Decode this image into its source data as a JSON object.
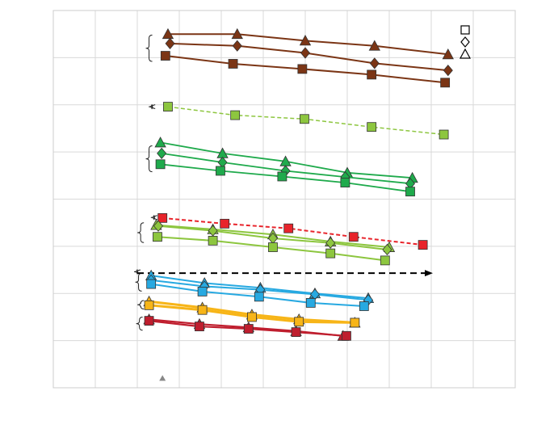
{
  "chart_data": {
    "type": "line",
    "title": "",
    "xlabel": "",
    "ylabel": "",
    "grid": true,
    "xlim": [
      0,
      11
    ],
    "ylim": [
      0,
      8
    ],
    "legend": {
      "placement": "top-right",
      "entries": [
        {
          "marker": "square"
        },
        {
          "marker": "diamond"
        },
        {
          "marker": "triangle"
        }
      ]
    },
    "series": [
      {
        "color": "#7B3515",
        "marker": "triangle",
        "dash": false,
        "width": 2,
        "brace": 0,
        "x": [
          2.73,
          4.38,
          6.0,
          7.65,
          9.4
        ],
        "y": [
          7.5,
          7.5,
          7.36,
          7.25,
          7.07
        ]
      },
      {
        "color": "#7B3515",
        "marker": "diamond",
        "dash": false,
        "width": 2,
        "brace": 0,
        "x": [
          2.78,
          4.38,
          6.0,
          7.65,
          9.4
        ],
        "y": [
          7.3,
          7.25,
          7.1,
          6.88,
          6.73
        ]
      },
      {
        "color": "#7B3515",
        "marker": "square",
        "dash": false,
        "width": 2,
        "brace": 0,
        "x": [
          2.67,
          4.28,
          5.93,
          7.58,
          9.33
        ],
        "y": [
          7.04,
          6.87,
          6.76,
          6.64,
          6.47
        ]
      },
      {
        "color": "#8DC63F",
        "marker": "square",
        "dash": true,
        "width": 1.5,
        "brace": 1,
        "x": [
          2.73,
          4.33,
          5.98,
          7.58,
          9.3
        ],
        "y": [
          5.96,
          5.78,
          5.7,
          5.53,
          5.37
        ]
      },
      {
        "color": "#1FAA4C",
        "marker": "triangle",
        "dash": false,
        "width": 1.8,
        "brace": 2,
        "x": [
          2.55,
          4.03,
          5.53,
          7.0,
          8.55
        ],
        "y": [
          5.2,
          4.97,
          4.8,
          4.56,
          4.45
        ]
      },
      {
        "color": "#1FAA4C",
        "marker": "diamond",
        "dash": false,
        "width": 1.8,
        "brace": 2,
        "x": [
          2.58,
          4.03,
          5.53,
          6.95,
          8.5
        ],
        "y": [
          4.97,
          4.78,
          4.6,
          4.47,
          4.33
        ]
      },
      {
        "color": "#1FAA4C",
        "marker": "square",
        "dash": false,
        "width": 1.8,
        "brace": 2,
        "x": [
          2.55,
          3.98,
          5.45,
          6.95,
          8.5
        ],
        "y": [
          4.74,
          4.6,
          4.48,
          4.35,
          4.16
        ]
      },
      {
        "color": "#E8242B",
        "marker": "square",
        "dash": true,
        "width": 2,
        "brace": 3,
        "x": [
          2.6,
          4.08,
          5.6,
          7.15,
          8.8
        ],
        "y": [
          3.6,
          3.48,
          3.38,
          3.2,
          3.03
        ]
      },
      {
        "color": "#8DC63F",
        "marker": "triangle",
        "dash": false,
        "width": 2,
        "brace": 4,
        "x": [
          2.45,
          3.8,
          5.23,
          6.6,
          8.0
        ],
        "y": [
          3.45,
          3.36,
          3.25,
          3.1,
          2.98
        ]
      },
      {
        "color": "#8DC63F",
        "marker": "diamond",
        "dash": false,
        "width": 2,
        "brace": 4,
        "x": [
          2.5,
          3.8,
          5.23,
          6.6,
          7.95
        ],
        "y": [
          3.43,
          3.33,
          3.17,
          3.07,
          2.93
        ]
      },
      {
        "color": "#8DC63F",
        "marker": "square",
        "dash": false,
        "width": 2,
        "brace": 4,
        "x": [
          2.48,
          3.8,
          5.23,
          6.6,
          7.9
        ],
        "y": [
          3.2,
          3.12,
          2.98,
          2.85,
          2.7
        ]
      },
      {
        "color": "#000000",
        "marker": "none",
        "dash": true,
        "width": 2,
        "brace": 5,
        "arrow": true,
        "x": [
          2.0,
          9.0
        ],
        "y": [
          2.43,
          2.43
        ]
      },
      {
        "color": "#27A9E1",
        "marker": "triangle",
        "dash": false,
        "width": 2,
        "brace": 6,
        "x": [
          2.33,
          3.6,
          4.93,
          6.23,
          7.5
        ],
        "y": [
          2.38,
          2.22,
          2.12,
          2.0,
          1.9
        ]
      },
      {
        "color": "#27A9E1",
        "marker": "diamond",
        "dash": false,
        "width": 2,
        "brace": 6,
        "x": [
          2.33,
          3.6,
          4.93,
          6.23,
          7.5
        ],
        "y": [
          2.28,
          2.15,
          2.08,
          1.98,
          1.86
        ]
      },
      {
        "color": "#27A9E1",
        "marker": "square",
        "dash": false,
        "width": 2,
        "brace": 6,
        "x": [
          2.33,
          3.55,
          4.9,
          6.13,
          7.4
        ],
        "y": [
          2.2,
          2.04,
          1.93,
          1.8,
          1.73
        ]
      },
      {
        "color": "#F7B518",
        "marker": "triangle",
        "dash": false,
        "width": 3,
        "brace": 7,
        "x": [
          2.28,
          3.55,
          4.73,
          5.85,
          7.18
        ],
        "y": [
          1.83,
          1.7,
          1.55,
          1.45,
          1.38
        ]
      },
      {
        "color": "#F7B518",
        "marker": "square",
        "dash": false,
        "width": 3,
        "brace": 7,
        "x": [
          2.28,
          3.55,
          4.73,
          5.85,
          7.18
        ],
        "y": [
          1.75,
          1.65,
          1.5,
          1.4,
          1.38
        ]
      },
      {
        "color": "#BF1E2E",
        "marker": "triangle",
        "dash": false,
        "width": 2.2,
        "brace": 8,
        "x": [
          2.28,
          3.48,
          4.65,
          5.78,
          6.9
        ],
        "y": [
          1.45,
          1.35,
          1.28,
          1.2,
          1.1
        ]
      },
      {
        "color": "#BF1E2E",
        "marker": "square",
        "dash": false,
        "width": 2.2,
        "brace": 8,
        "x": [
          2.28,
          3.48,
          4.65,
          5.78,
          6.98
        ],
        "y": [
          1.42,
          1.3,
          1.25,
          1.18,
          1.1
        ]
      }
    ],
    "braces": [
      {
        "x": 2.28,
        "y_top": 7.48,
        "y_bottom": 6.92
      },
      {
        "x": 2.35,
        "y_top": 6.0,
        "y_bottom": 5.92
      },
      {
        "x": 2.28,
        "y_top": 5.13,
        "y_bottom": 4.58
      },
      {
        "x": 2.4,
        "y_top": 3.65,
        "y_bottom": 3.57
      },
      {
        "x": 2.08,
        "y_top": 3.5,
        "y_bottom": 3.08
      },
      {
        "x": 2.0,
        "y_top": 2.5,
        "y_bottom": 2.42
      },
      {
        "x": 2.03,
        "y_top": 2.43,
        "y_bottom": 2.05
      },
      {
        "x": 2.08,
        "y_top": 1.85,
        "y_bottom": 1.67
      },
      {
        "x": 2.05,
        "y_top": 1.5,
        "y_bottom": 1.22
      }
    ],
    "stray_marker": {
      "marker": "triangle",
      "color": "#888888",
      "x": 2.6,
      "y": 0.2
    }
  }
}
